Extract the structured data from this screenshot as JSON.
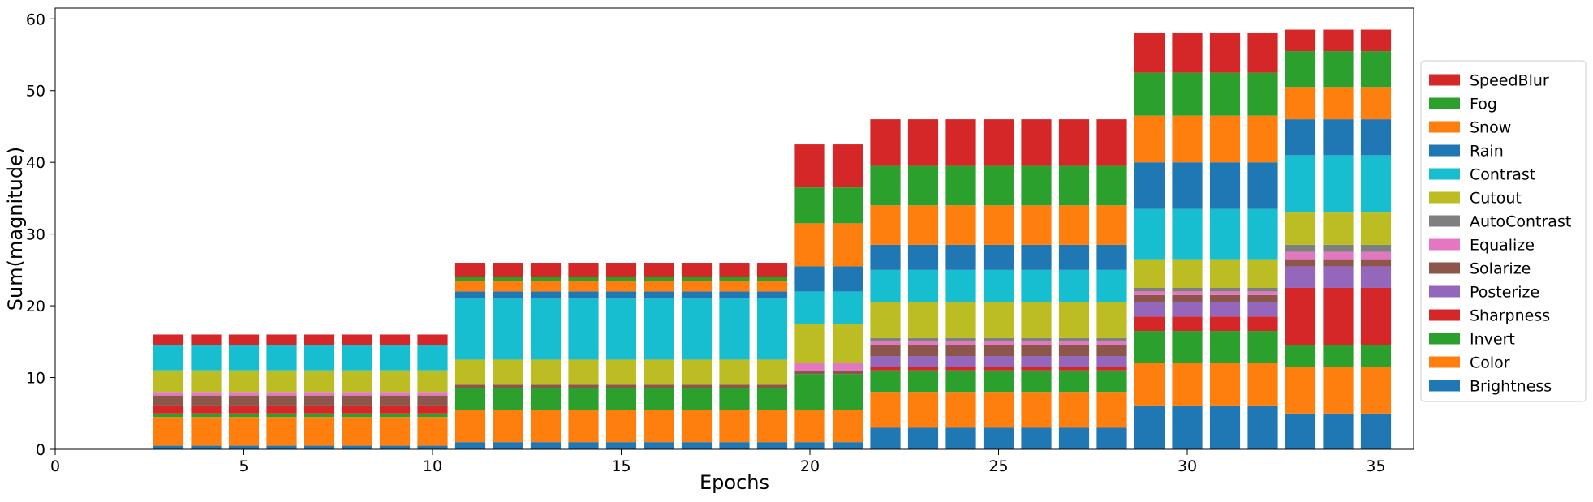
{
  "chart_data": {
    "type": "bar",
    "stacked": true,
    "title": "",
    "xlabel": "Epochs",
    "ylabel": "Sum(magnitude)",
    "xlim": [
      0,
      36
    ],
    "ylim": [
      0,
      61.5
    ],
    "xticks": [
      0,
      5,
      10,
      15,
      20,
      25,
      30,
      35
    ],
    "yticks": [
      0,
      10,
      20,
      30,
      40,
      50,
      60
    ],
    "grid": false,
    "legend_position": "right",
    "x": [
      3,
      4,
      5,
      6,
      7,
      8,
      9,
      10,
      11,
      12,
      13,
      14,
      15,
      16,
      17,
      18,
      19,
      20,
      21,
      22,
      23,
      24,
      25,
      26,
      27,
      28,
      29,
      30,
      31,
      32,
      33,
      34,
      35
    ],
    "series": [
      {
        "name": "Brightness",
        "color": "#1f77b4",
        "values": [
          0.5,
          0.5,
          0.5,
          0.5,
          0.5,
          0.5,
          0.5,
          0.5,
          1,
          1,
          1,
          1,
          1,
          1,
          1,
          1,
          1,
          1,
          1,
          3,
          3,
          3,
          3,
          3,
          3,
          3,
          6,
          6,
          6,
          6,
          5,
          5,
          5
        ]
      },
      {
        "name": "Color",
        "color": "#ff7f0e",
        "values": [
          4,
          4,
          4,
          4,
          4,
          4,
          4,
          4,
          4.5,
          4.5,
          4.5,
          4.5,
          4.5,
          4.5,
          4.5,
          4.5,
          4.5,
          4.5,
          4.5,
          5,
          5,
          5,
          5,
          5,
          5,
          5,
          6,
          6,
          6,
          6,
          6.5,
          6.5,
          6.5
        ]
      },
      {
        "name": "Invert",
        "color": "#2ca02c",
        "values": [
          0.5,
          0.5,
          0.5,
          0.5,
          0.5,
          0.5,
          0.5,
          0.5,
          3,
          3,
          3,
          3,
          3,
          3,
          3,
          3,
          3,
          5,
          5,
          3,
          3,
          3,
          3,
          3,
          3,
          3,
          4.5,
          4.5,
          4.5,
          4.5,
          3,
          3,
          3
        ]
      },
      {
        "name": "Sharpness",
        "color": "#d62728",
        "values": [
          1,
          1,
          1,
          1,
          1,
          1,
          1,
          1,
          0,
          0,
          0,
          0,
          0,
          0,
          0,
          0,
          0,
          0,
          0,
          0.5,
          0.5,
          0.5,
          0.5,
          0.5,
          0.5,
          0.5,
          2,
          2,
          2,
          2,
          8,
          8,
          8
        ]
      },
      {
        "name": "Posterize",
        "color": "#9467bd",
        "values": [
          0,
          0,
          0,
          0,
          0,
          0,
          0,
          0,
          0,
          0,
          0,
          0,
          0,
          0,
          0,
          0,
          0,
          0,
          0,
          1.5,
          1.5,
          1.5,
          1.5,
          1.5,
          1.5,
          1.5,
          2,
          2,
          2,
          2,
          3,
          3,
          3
        ]
      },
      {
        "name": "Solarize",
        "color": "#8c564b",
        "values": [
          1.5,
          1.5,
          1.5,
          1.5,
          1.5,
          1.5,
          1.5,
          1.5,
          0.5,
          0.5,
          0.5,
          0.5,
          0.5,
          0.5,
          0.5,
          0.5,
          0.5,
          0.5,
          0.5,
          1.5,
          1.5,
          1.5,
          1.5,
          1.5,
          1.5,
          1.5,
          1,
          1,
          1,
          1,
          1,
          1,
          1
        ]
      },
      {
        "name": "Equalize",
        "color": "#e377c2",
        "values": [
          0.5,
          0.5,
          0.5,
          0.5,
          0.5,
          0.5,
          0.5,
          0.5,
          0,
          0,
          0,
          0,
          0,
          0,
          0,
          0,
          0,
          1,
          1,
          0.5,
          0.5,
          0.5,
          0.5,
          0.5,
          0.5,
          0.5,
          0.5,
          0.5,
          0.5,
          0.5,
          1,
          1,
          1
        ]
      },
      {
        "name": "AutoContrast",
        "color": "#7f7f7f",
        "values": [
          0,
          0,
          0,
          0,
          0,
          0,
          0,
          0,
          0,
          0,
          0,
          0,
          0,
          0,
          0,
          0,
          0,
          0,
          0,
          0.5,
          0.5,
          0.5,
          0.5,
          0.5,
          0.5,
          0.5,
          0.5,
          0.5,
          0.5,
          0.5,
          1,
          1,
          1
        ]
      },
      {
        "name": "Cutout",
        "color": "#bcbd22",
        "values": [
          3,
          3,
          3,
          3,
          3,
          3,
          3,
          3,
          3.5,
          3.5,
          3.5,
          3.5,
          3.5,
          3.5,
          3.5,
          3.5,
          3.5,
          5.5,
          5.5,
          5,
          5,
          5,
          5,
          5,
          5,
          5,
          4,
          4,
          4,
          4,
          4.5,
          4.5,
          4.5
        ]
      },
      {
        "name": "Contrast",
        "color": "#17becf",
        "values": [
          3.5,
          3.5,
          3.5,
          3.5,
          3.5,
          3.5,
          3.5,
          3.5,
          8.5,
          8.5,
          8.5,
          8.5,
          8.5,
          8.5,
          8.5,
          8.5,
          8.5,
          4.5,
          4.5,
          4.5,
          4.5,
          4.5,
          4.5,
          4.5,
          4.5,
          4.5,
          7,
          7,
          7,
          7,
          8,
          8,
          8
        ]
      },
      {
        "name": "Rain",
        "color": "#1f77b4",
        "values": [
          0,
          0,
          0,
          0,
          0,
          0,
          0,
          0,
          1,
          1,
          1,
          1,
          1,
          1,
          1,
          1,
          1,
          3.5,
          3.5,
          3.5,
          3.5,
          3.5,
          3.5,
          3.5,
          3.5,
          3.5,
          6.5,
          6.5,
          6.5,
          6.5,
          5,
          5,
          5
        ]
      },
      {
        "name": "Snow",
        "color": "#ff7f0e",
        "values": [
          0,
          0,
          0,
          0,
          0,
          0,
          0,
          0,
          1.5,
          1.5,
          1.5,
          1.5,
          1.5,
          1.5,
          1.5,
          1.5,
          1.5,
          6,
          6,
          5.5,
          5.5,
          5.5,
          5.5,
          5.5,
          5.5,
          5.5,
          6.5,
          6.5,
          6.5,
          6.5,
          4.5,
          4.5,
          4.5
        ]
      },
      {
        "name": "Fog",
        "color": "#2ca02c",
        "values": [
          0,
          0,
          0,
          0,
          0,
          0,
          0,
          0,
          0.5,
          0.5,
          0.5,
          0.5,
          0.5,
          0.5,
          0.5,
          0.5,
          0.5,
          5,
          5,
          5.5,
          5.5,
          5.5,
          5.5,
          5.5,
          5.5,
          5.5,
          6,
          6,
          6,
          6,
          5,
          5,
          5
        ]
      },
      {
        "name": "SpeedBlur",
        "color": "#d62728",
        "values": [
          1.5,
          1.5,
          1.5,
          1.5,
          1.5,
          1.5,
          1.5,
          1.5,
          2,
          2,
          2,
          2,
          2,
          2,
          2,
          2,
          2,
          6,
          6,
          6.5,
          6.5,
          6.5,
          6.5,
          6.5,
          6.5,
          6.5,
          5.5,
          5.5,
          5.5,
          5.5,
          3,
          3,
          3
        ]
      }
    ]
  }
}
